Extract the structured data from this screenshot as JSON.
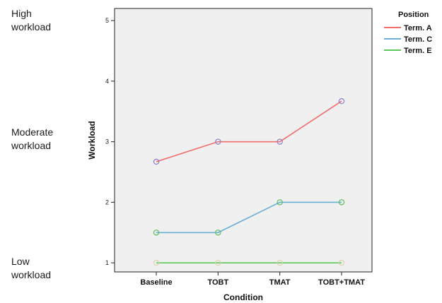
{
  "annotations": {
    "high": [
      "High",
      "workload"
    ],
    "moderate": [
      "Moderate",
      "workload"
    ],
    "low": [
      "Low",
      "workload"
    ]
  },
  "chart_data": {
    "type": "line",
    "title": "",
    "xlabel": "Condition",
    "ylabel": "Workload",
    "categories": [
      "Baseline",
      "TOBT",
      "TMAT",
      "TOBT+TMAT"
    ],
    "ylim": [
      0.85,
      5.2
    ],
    "yticks": [
      1,
      2,
      3,
      4,
      5
    ],
    "grid": false,
    "legend": {
      "title": "Position",
      "placement": "top-right outside"
    },
    "series": [
      {
        "name": "Term. A",
        "color": "#f06e6e",
        "marker_color": "#8a7fc8",
        "values": [
          2.67,
          3.0,
          3.0,
          3.67
        ]
      },
      {
        "name": "Term. C",
        "color": "#6aaed6",
        "marker_color": "#5cbf5c",
        "values": [
          1.5,
          1.5,
          2.0,
          2.0
        ]
      },
      {
        "name": "Term. E",
        "color": "#5cc85c",
        "marker_color": "#d9d4a8",
        "values": [
          1.0,
          1.0,
          1.0,
          1.0
        ]
      }
    ],
    "plot_background": "#f0f0f0"
  }
}
